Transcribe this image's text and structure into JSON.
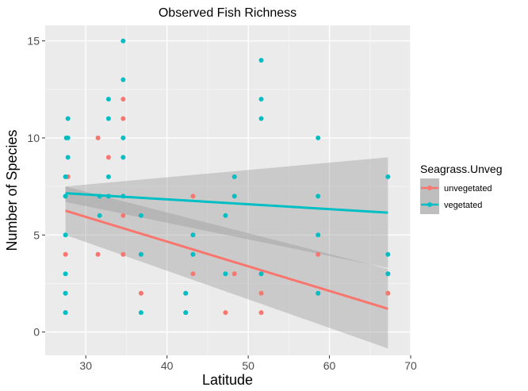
{
  "chart_data": {
    "type": "scatter",
    "title": "Observed Fish Richness",
    "xlabel": "Latitude",
    "ylabel": "Number of Species",
    "xlim": [
      25,
      70
    ],
    "ylim": [
      -1.2,
      15.8
    ],
    "x_ticks": [
      30,
      40,
      50,
      60,
      70
    ],
    "y_ticks": [
      0,
      5,
      10,
      15
    ],
    "grid": true,
    "legend": {
      "title": "Seagrass.Unveg",
      "position": "right",
      "entries": [
        "unvegetated",
        "vegetated"
      ]
    },
    "series": [
      {
        "name": "unvegetated",
        "color": "#F8766D",
        "points": [
          [
            27.5,
            1
          ],
          [
            27.5,
            2
          ],
          [
            27.5,
            4
          ],
          [
            27.5,
            7
          ],
          [
            27.8,
            8
          ],
          [
            31.5,
            4
          ],
          [
            31.5,
            10
          ],
          [
            32.8,
            7
          ],
          [
            32.8,
            9
          ],
          [
            34.6,
            4
          ],
          [
            34.6,
            6
          ],
          [
            34.6,
            11
          ],
          [
            34.6,
            12
          ],
          [
            36.8,
            2
          ],
          [
            36.8,
            4
          ],
          [
            42.3,
            1
          ],
          [
            42.3,
            2
          ],
          [
            43.2,
            3
          ],
          [
            43.2,
            7
          ],
          [
            47.2,
            1
          ],
          [
            48.3,
            3
          ],
          [
            51.6,
            1
          ],
          [
            51.6,
            2
          ],
          [
            51.6,
            3
          ],
          [
            58.6,
            2
          ],
          [
            58.6,
            4
          ],
          [
            67.2,
            2
          ],
          [
            67.2,
            3
          ]
        ],
        "trend": {
          "x": [
            27.5,
            67.2
          ],
          "y": [
            6.25,
            1.2
          ],
          "ci_low": [
            5.0,
            -0.85
          ],
          "ci_high": [
            7.5,
            3.25
          ]
        }
      },
      {
        "name": "vegetated",
        "color": "#00BFC4",
        "points": [
          [
            27.5,
            1
          ],
          [
            27.5,
            2
          ],
          [
            27.5,
            3
          ],
          [
            27.5,
            5
          ],
          [
            27.5,
            7
          ],
          [
            27.5,
            8
          ],
          [
            27.8,
            9
          ],
          [
            27.8,
            10
          ],
          [
            27.8,
            11
          ],
          [
            27.6,
            10
          ],
          [
            31.7,
            6
          ],
          [
            31.7,
            7
          ],
          [
            32.8,
            7
          ],
          [
            32.8,
            8
          ],
          [
            32.8,
            11
          ],
          [
            32.8,
            12
          ],
          [
            34.6,
            7
          ],
          [
            34.6,
            9
          ],
          [
            34.6,
            10
          ],
          [
            34.6,
            13
          ],
          [
            34.6,
            15
          ],
          [
            36.8,
            1
          ],
          [
            36.8,
            4
          ],
          [
            36.8,
            6
          ],
          [
            42.3,
            1
          ],
          [
            42.3,
            2
          ],
          [
            43.2,
            4
          ],
          [
            43.2,
            5
          ],
          [
            47.2,
            3
          ],
          [
            47.2,
            6
          ],
          [
            48.3,
            7
          ],
          [
            48.3,
            8
          ],
          [
            51.6,
            3
          ],
          [
            51.6,
            11
          ],
          [
            51.6,
            12
          ],
          [
            51.6,
            14
          ],
          [
            58.6,
            2
          ],
          [
            58.6,
            5
          ],
          [
            58.6,
            7
          ],
          [
            58.6,
            10
          ],
          [
            67.2,
            3
          ],
          [
            67.2,
            4
          ],
          [
            67.2,
            8
          ]
        ],
        "trend": {
          "x": [
            27.5,
            67.2
          ],
          "y": [
            7.15,
            6.15
          ],
          "ci_low": [
            6.7,
            3.3
          ],
          "ci_high": [
            7.5,
            9.0
          ]
        }
      }
    ]
  }
}
